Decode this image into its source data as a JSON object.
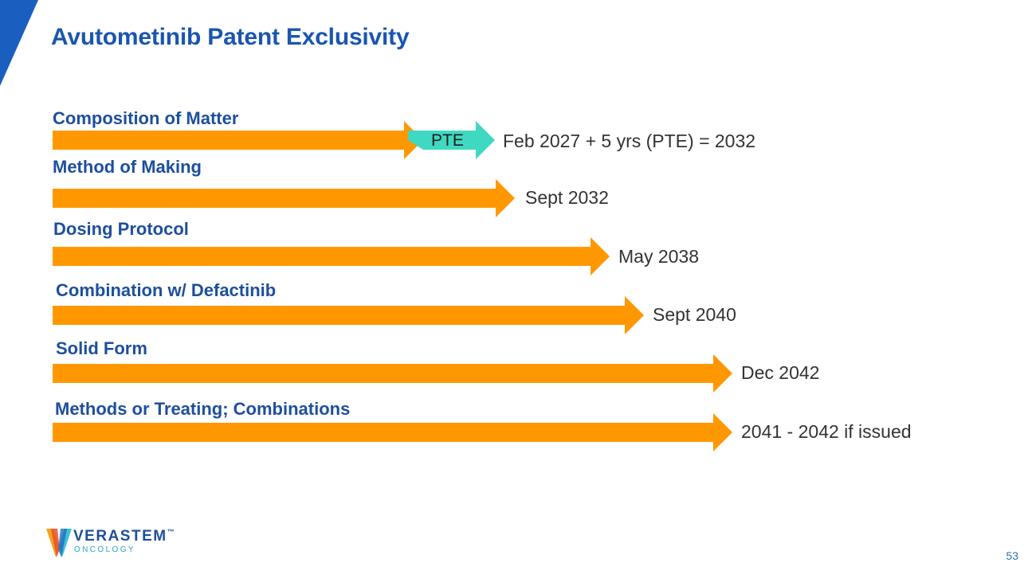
{
  "title": "Avutometinib Patent Exclusivity",
  "colors": {
    "arrow": "#ff9800",
    "pte": "#3fd9c1",
    "title": "#1a56b0",
    "label": "#1d4f9c"
  },
  "rows": [
    {
      "label": "Composition of Matter",
      "value": "Feb 2027 + 5 yrs (PTE) = 2032",
      "pte_label": "PTE"
    },
    {
      "label": "Method of Making",
      "value": "Sept 2032"
    },
    {
      "label": "Dosing Protocol",
      "value": "May 2038"
    },
    {
      "label": "Combination w/ Defactinib",
      "value": "Sept 2040"
    },
    {
      "label": "Solid Form",
      "value": "Dec 2042"
    },
    {
      "label": "Methods or Treating; Combinations",
      "value": "2041 - 2042 if issued"
    }
  ],
  "logo": {
    "name": "VERASTEM",
    "trademark": "™",
    "sub": "ONCOLOGY"
  },
  "page_number": "53"
}
